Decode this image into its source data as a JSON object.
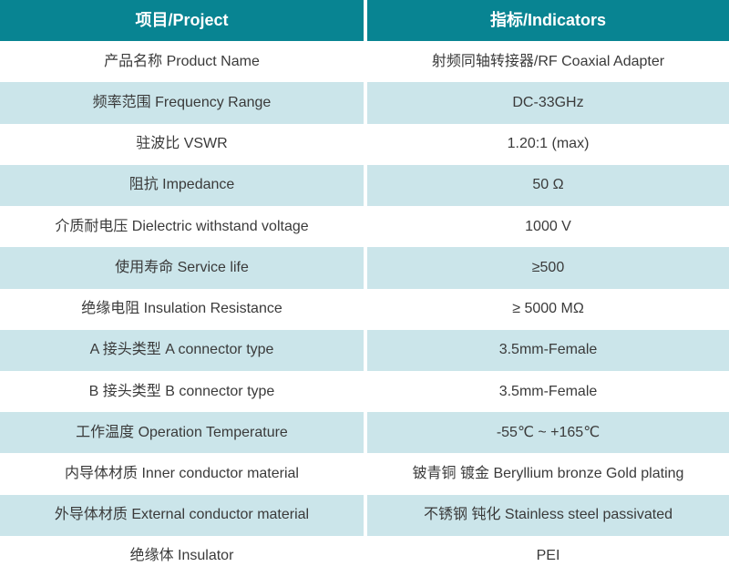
{
  "table": {
    "header": {
      "project": "项目/Project",
      "indicators": "指标/Indicators"
    },
    "rows": [
      {
        "project": "产品名称 Product Name",
        "indicator": "射频同轴转接器/RF Coaxial Adapter"
      },
      {
        "project": "频率范围 Frequency Range",
        "indicator": "DC-33GHz"
      },
      {
        "project": "驻波比 VSWR",
        "indicator": "1.20:1 (max)"
      },
      {
        "project": "阻抗 Impedance",
        "indicator": "50 Ω"
      },
      {
        "project": "介质耐电压 Dielectric withstand voltage",
        "indicator": "1000 V"
      },
      {
        "project": "使用寿命 Service life",
        "indicator": "≥500"
      },
      {
        "project": "绝缘电阻 Insulation Resistance",
        "indicator": "≥ 5000 MΩ"
      },
      {
        "project": "A 接头类型  A connector type",
        "indicator": "3.5mm-Female"
      },
      {
        "project": "B 接头类型  B connector type",
        "indicator": "3.5mm-Female"
      },
      {
        "project": "工作温度 Operation Temperature",
        "indicator": "-55℃ ~ +165℃"
      },
      {
        "project": "内导体材质 Inner conductor material",
        "indicator": "铍青铜 镀金 Beryllium bronze Gold plating"
      },
      {
        "project": "外导体材质 External conductor material",
        "indicator": "不锈钢 钝化 Stainless steel passivated"
      },
      {
        "project": "绝缘体 Insulator",
        "indicator": "PEI"
      }
    ],
    "colors": {
      "header_bg": "#088492",
      "alt_row_bg": "#cbe5ea",
      "row_bg": "#ffffff",
      "header_text": "#ffffff",
      "body_text": "#3a3a3a"
    }
  }
}
